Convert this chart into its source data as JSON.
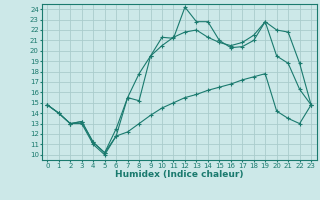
{
  "title": "",
  "xlabel": "Humidex (Indice chaleur)",
  "ylabel": "",
  "background_color": "#cce8e8",
  "grid_color": "#aacccc",
  "line_color": "#1a7a6e",
  "xlim": [
    -0.5,
    23.5
  ],
  "ylim": [
    9.5,
    24.5
  ],
  "xticks": [
    0,
    1,
    2,
    3,
    4,
    5,
    6,
    7,
    8,
    9,
    10,
    11,
    12,
    13,
    14,
    15,
    16,
    17,
    18,
    19,
    20,
    21,
    22,
    23
  ],
  "yticks": [
    10,
    11,
    12,
    13,
    14,
    15,
    16,
    17,
    18,
    19,
    20,
    21,
    22,
    23,
    24
  ],
  "line1_x": [
    0,
    1,
    2,
    3,
    4,
    5,
    6,
    7,
    8,
    9,
    10,
    11,
    12,
    13,
    14,
    15,
    16,
    17,
    18,
    19,
    20,
    21,
    22,
    23
  ],
  "line1_y": [
    14.8,
    14.0,
    13.0,
    13.0,
    11.0,
    10.0,
    11.8,
    15.5,
    15.2,
    19.5,
    21.3,
    21.2,
    24.2,
    22.8,
    22.8,
    21.0,
    20.3,
    20.4,
    21.0,
    22.8,
    19.5,
    18.8,
    16.3,
    14.8
  ],
  "line2_x": [
    0,
    1,
    2,
    3,
    4,
    5,
    6,
    7,
    8,
    9,
    10,
    11,
    12,
    13,
    14,
    15,
    16,
    17,
    18,
    19,
    20,
    21,
    22,
    23
  ],
  "line2_y": [
    14.8,
    14.0,
    13.0,
    13.2,
    11.2,
    10.2,
    12.5,
    15.5,
    17.8,
    19.5,
    20.5,
    21.3,
    21.8,
    22.0,
    21.3,
    20.8,
    20.5,
    20.8,
    21.5,
    22.8,
    22.0,
    21.8,
    18.8,
    14.8
  ],
  "line3_x": [
    0,
    1,
    2,
    3,
    4,
    5,
    6,
    7,
    8,
    9,
    10,
    11,
    12,
    13,
    14,
    15,
    16,
    17,
    18,
    19,
    20,
    21,
    22,
    23
  ],
  "line3_y": [
    14.8,
    14.0,
    13.0,
    13.2,
    11.2,
    10.2,
    11.8,
    12.2,
    13.0,
    13.8,
    14.5,
    15.0,
    15.5,
    15.8,
    16.2,
    16.5,
    16.8,
    17.2,
    17.5,
    17.8,
    14.2,
    13.5,
    13.0,
    14.8
  ],
  "tick_fontsize": 5,
  "xlabel_fontsize": 6.5
}
